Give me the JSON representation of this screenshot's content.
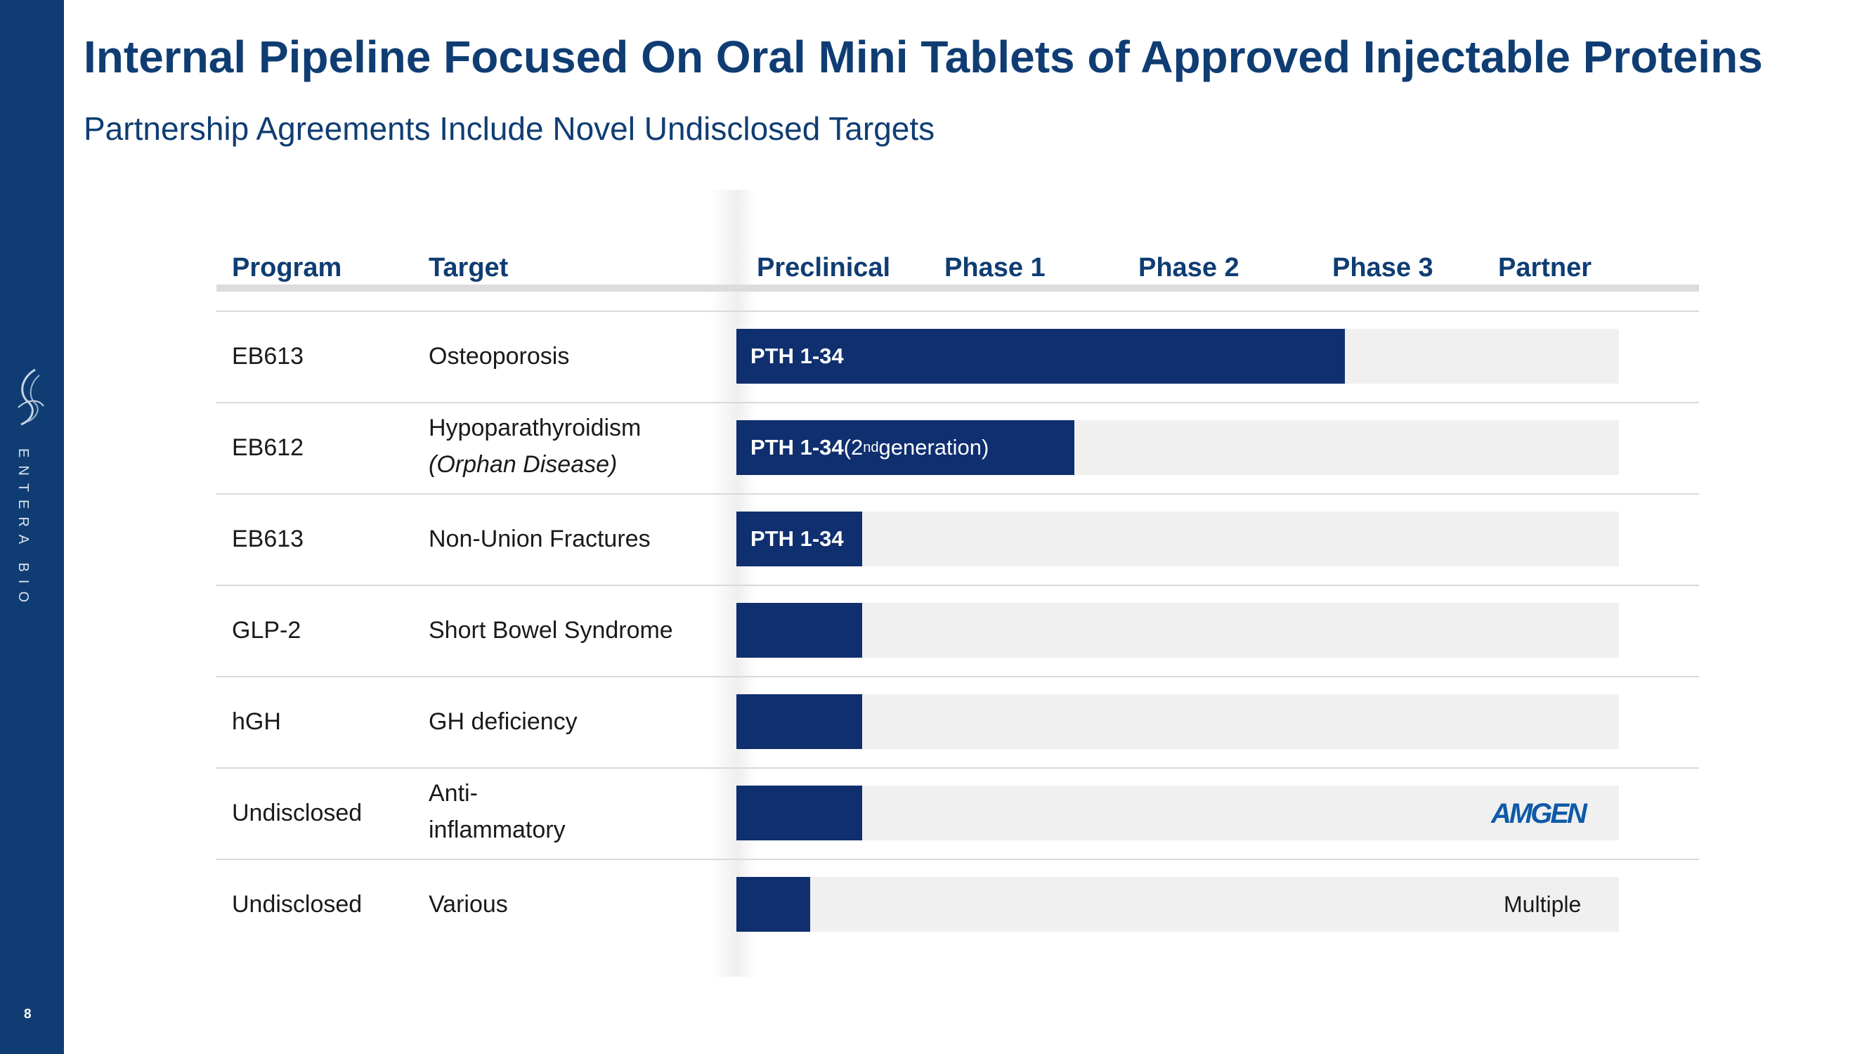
{
  "brand": {
    "name": "ENTERA BIO",
    "logo_icon": "swirl-logo-icon"
  },
  "page_number": "8",
  "title": "Internal Pipeline Focused On Oral Mini Tablets of Approved Injectable Proteins",
  "subtitle": "Partnership Agreements Include Novel Undisclosed Targets",
  "colors": {
    "brand_navy": "#0f3d73",
    "bar_navy": "#0f2f6f",
    "track_gray": "#f0f0f0"
  },
  "chart_data": {
    "type": "bar",
    "orientation": "horizontal",
    "stage_scale": [
      "Preclinical",
      "Phase 1",
      "Phase 2",
      "Phase 3",
      "Partner"
    ],
    "columns": [
      "Program",
      "Target",
      "Preclinical",
      "Phase 1",
      "Phase 2",
      "Phase 3",
      "Partner"
    ],
    "rows": [
      {
        "program": "EB613",
        "target": "Osteoporosis",
        "target_note": "",
        "bar_label": "PTH 1-34",
        "bar_suffix": "",
        "progress": 3.15,
        "partner": "",
        "partner_logo": ""
      },
      {
        "program": "EB612",
        "target": "Hypoparathyroidism",
        "target_note": "(Orphan Disease)",
        "bar_label": "PTH 1-34",
        "bar_suffix": " (2",
        "bar_sup": "nd",
        "bar_suffix2": " generation)",
        "progress": 1.75,
        "partner": "",
        "partner_logo": ""
      },
      {
        "program": "EB613",
        "target": "Non-Union Fractures",
        "target_note": "",
        "bar_label": "PTH 1-34",
        "bar_suffix": "",
        "progress": 0.65,
        "partner": "",
        "partner_logo": ""
      },
      {
        "program": "GLP-2",
        "target": "Short Bowel Syndrome",
        "target_note": "",
        "bar_label": "",
        "bar_suffix": "",
        "progress": 0.65,
        "partner": "",
        "partner_logo": ""
      },
      {
        "program": "hGH",
        "target": "GH deficiency",
        "target_note": "",
        "bar_label": "",
        "bar_suffix": "",
        "progress": 0.65,
        "partner": "",
        "partner_logo": ""
      },
      {
        "program": "Undisclosed",
        "target": "Anti-",
        "target_note": "inflammatory",
        "bar_label": "",
        "bar_suffix": "",
        "progress": 0.65,
        "partner": "",
        "partner_logo": "AMGEN"
      },
      {
        "program": "Undisclosed",
        "target": "Various",
        "target_note": "",
        "bar_label": "",
        "bar_suffix": "",
        "progress": 0.38,
        "partner": "Multiple",
        "partner_logo": ""
      }
    ]
  }
}
